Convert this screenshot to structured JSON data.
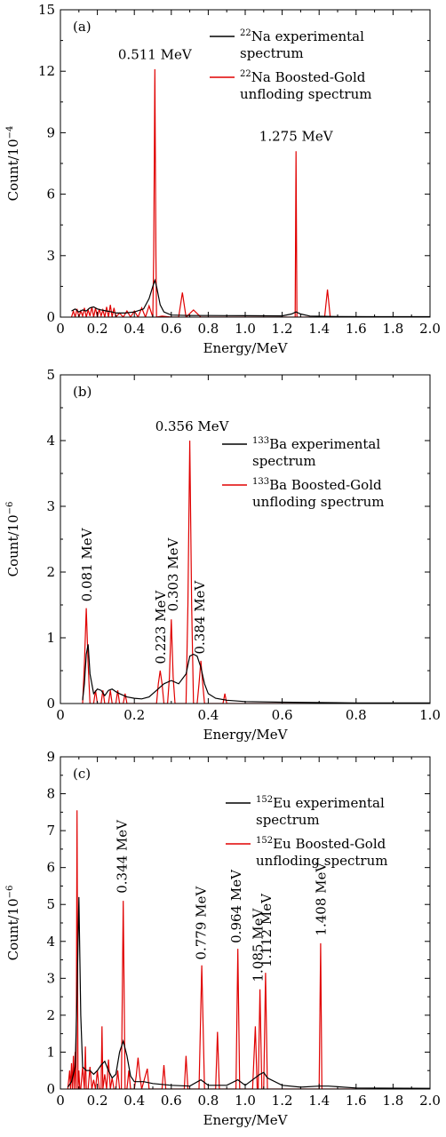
{
  "chart_data": [
    {
      "type": "line",
      "panel_tag": "(a)",
      "xlabel": "Energy/MeV",
      "ylabel": "Count/10",
      "ylabel_exp": "−4",
      "xlim": [
        0,
        2.0
      ],
      "ylim": [
        0,
        15
      ],
      "xticks": [
        "0",
        "0.2",
        "0.4",
        "0.6",
        "0.8",
        "1.0",
        "1.2",
        "1.4",
        "1.6",
        "1.8",
        "2.0"
      ],
      "yticks": [
        "0",
        "3",
        "6",
        "9",
        "12",
        "15"
      ],
      "legend": [
        {
          "sup": "22",
          "line1": "Na experimental",
          "line2": "spectrum",
          "color": "#000000"
        },
        {
          "sup": "22",
          "line1": "Na Boosted-Gold",
          "line2": "unfloding spectrum",
          "color": "#e00000"
        }
      ],
      "annotations": [
        {
          "text": "0.511 MeV",
          "x": 0.511,
          "y": 12.6,
          "rotate": false
        },
        {
          "text": "1.275 MeV",
          "x": 1.275,
          "y": 8.6,
          "rotate": false
        }
      ],
      "series": [
        {
          "color": "#000000",
          "x": [
            0.06,
            0.08,
            0.1,
            0.12,
            0.14,
            0.16,
            0.18,
            0.2,
            0.22,
            0.25,
            0.28,
            0.3,
            0.35,
            0.4,
            0.45,
            0.48,
            0.5,
            0.511,
            0.52,
            0.54,
            0.56,
            0.6,
            0.7,
            0.8,
            1.0,
            1.2,
            1.25,
            1.275,
            1.3,
            1.35,
            1.5,
            1.7,
            2.0
          ],
          "y": [
            0.3,
            0.4,
            0.25,
            0.35,
            0.3,
            0.45,
            0.5,
            0.4,
            0.35,
            0.3,
            0.25,
            0.2,
            0.2,
            0.25,
            0.4,
            0.9,
            1.5,
            1.8,
            1.5,
            0.6,
            0.25,
            0.1,
            0.08,
            0.08,
            0.07,
            0.06,
            0.15,
            0.25,
            0.15,
            0.05,
            0.03,
            0.02,
            0.02
          ]
        },
        {
          "color": "#e00000",
          "x": [
            0.06,
            0.07,
            0.08,
            0.09,
            0.1,
            0.11,
            0.12,
            0.13,
            0.14,
            0.15,
            0.16,
            0.17,
            0.18,
            0.19,
            0.2,
            0.21,
            0.22,
            0.23,
            0.24,
            0.25,
            0.26,
            0.27,
            0.28,
            0.29,
            0.3,
            0.32,
            0.34,
            0.36,
            0.38,
            0.4,
            0.42,
            0.44,
            0.46,
            0.48,
            0.5,
            0.505,
            0.511,
            0.517,
            0.52,
            0.55,
            0.6,
            0.64,
            0.66,
            0.68,
            0.72,
            0.76,
            0.8,
            1.0,
            1.2,
            1.27,
            1.275,
            1.28,
            1.3,
            1.4,
            1.43,
            1.445,
            1.46,
            1.5,
            2.0
          ],
          "y": [
            0,
            0.3,
            0,
            0.4,
            0,
            0.3,
            0.05,
            0.45,
            0,
            0.35,
            0.05,
            0.5,
            0,
            0.45,
            0,
            0.4,
            0.05,
            0.35,
            0,
            0.5,
            0,
            0.6,
            0,
            0.45,
            0,
            0.2,
            0,
            0.3,
            0,
            0.3,
            0,
            0.45,
            0,
            0.55,
            0,
            3,
            12.1,
            3,
            0,
            0.05,
            0,
            0,
            1.2,
            0,
            0.35,
            0,
            0,
            0,
            0,
            0,
            8.1,
            0,
            0,
            0,
            0,
            1.35,
            0,
            0,
            0
          ]
        }
      ]
    },
    {
      "type": "line",
      "panel_tag": "(b)",
      "xlabel": "Energy/MeV",
      "ylabel": "Count/10",
      "ylabel_exp": "−6",
      "xlim": [
        0,
        1.0
      ],
      "ylim": [
        0,
        5
      ],
      "xticks": [
        "0",
        "0.2",
        "0.4",
        "0.6",
        "0.8",
        "1.0"
      ],
      "yticks": [
        "0",
        "1",
        "2",
        "3",
        "4",
        "5"
      ],
      "legend": [
        {
          "sup": "133",
          "line1": "Ba experimental",
          "line2": "spectrum",
          "color": "#000000"
        },
        {
          "sup": "133",
          "line1": "Ba Boosted-Gold",
          "line2": "unfloding spectrum",
          "color": "#e00000"
        }
      ],
      "annotations": [
        {
          "text": "0.356 MeV",
          "x": 0.356,
          "y": 4.15,
          "rotate": false
        },
        {
          "text": "0.081 MeV",
          "x": 0.072,
          "y": 1.55,
          "rotate": true
        },
        {
          "text": "0.223 MeV",
          "x": 0.272,
          "y": 0.6,
          "rotate": true
        },
        {
          "text": "0.303 MeV",
          "x": 0.305,
          "y": 1.4,
          "rotate": true
        },
        {
          "text": "0.384 MeV",
          "x": 0.378,
          "y": 0.75,
          "rotate": true
        }
      ],
      "series": [
        {
          "color": "#000000",
          "x": [
            0.06,
            0.065,
            0.07,
            0.075,
            0.08,
            0.09,
            0.1,
            0.11,
            0.12,
            0.13,
            0.14,
            0.15,
            0.16,
            0.18,
            0.2,
            0.22,
            0.24,
            0.26,
            0.28,
            0.3,
            0.32,
            0.34,
            0.35,
            0.36,
            0.37,
            0.38,
            0.39,
            0.4,
            0.42,
            0.45,
            0.5,
            0.6,
            0.8,
            1.0
          ],
          "y": [
            0.05,
            0.3,
            0.75,
            0.9,
            0.45,
            0.15,
            0.22,
            0.2,
            0.12,
            0.2,
            0.22,
            0.18,
            0.15,
            0.1,
            0.08,
            0.07,
            0.1,
            0.2,
            0.3,
            0.35,
            0.3,
            0.45,
            0.72,
            0.75,
            0.72,
            0.55,
            0.3,
            0.15,
            0.08,
            0.05,
            0.03,
            0.02,
            0.01,
            0.01
          ]
        },
        {
          "color": "#e00000",
          "x": [
            0.06,
            0.065,
            0.07,
            0.075,
            0.08,
            0.085,
            0.09,
            0.095,
            0.1,
            0.11,
            0.115,
            0.12,
            0.13,
            0.135,
            0.14,
            0.15,
            0.155,
            0.16,
            0.17,
            0.175,
            0.18,
            0.19,
            0.2,
            0.22,
            0.24,
            0.26,
            0.265,
            0.27,
            0.275,
            0.28,
            0.29,
            0.295,
            0.3,
            0.305,
            0.31,
            0.33,
            0.34,
            0.345,
            0.35,
            0.355,
            0.36,
            0.37,
            0.375,
            0.38,
            0.385,
            0.39,
            0.42,
            0.44,
            0.445,
            0.45,
            0.46,
            0.5,
            1.0
          ],
          "y": [
            0,
            0.6,
            1.45,
            0.6,
            0,
            0,
            0,
            0.2,
            0,
            0,
            0.2,
            0,
            0,
            0.2,
            0,
            0,
            0.2,
            0,
            0,
            0.15,
            0,
            0,
            0,
            0,
            0,
            0,
            0.3,
            0.5,
            0.3,
            0,
            0,
            0.4,
            1.28,
            0.4,
            0,
            0,
            0,
            1.5,
            4.0,
            1.5,
            0,
            0,
            0.3,
            0.65,
            0.3,
            0,
            0,
            0,
            0.15,
            0,
            0,
            0,
            0
          ]
        }
      ]
    },
    {
      "type": "line",
      "panel_tag": "(c)",
      "xlabel": "Energy/MeV",
      "ylabel": "Count/10",
      "ylabel_exp": "−6",
      "xlim": [
        0,
        2.0
      ],
      "ylim": [
        0,
        9
      ],
      "xticks": [
        "0",
        "0.2",
        "0.4",
        "0.6",
        "0.8",
        "1.0",
        "1.2",
        "1.4",
        "1.6",
        "1.8",
        "2.0"
      ],
      "yticks": [
        "0",
        "1",
        "2",
        "3",
        "4",
        "5",
        "6",
        "7",
        "8",
        "9"
      ],
      "legend": [
        {
          "sup": "152",
          "line1": "Eu experimental",
          "line2": "spectrum",
          "color": "#000000"
        },
        {
          "sup": "152",
          "line1": "Eu Boosted-Gold",
          "line2": "unfloding spectrum",
          "color": "#e00000"
        }
      ],
      "annotations": [
        {
          "text": "0.344 MeV",
          "x": 0.335,
          "y": 5.3,
          "rotate": true
        },
        {
          "text": "0.779 MeV",
          "x": 0.762,
          "y": 3.5,
          "rotate": true
        },
        {
          "text": "0.964 MeV",
          "x": 0.952,
          "y": 3.95,
          "rotate": true
        },
        {
          "text": "1.085 MeV",
          "x": 1.07,
          "y": 2.9,
          "rotate": true
        },
        {
          "text": "1.112 MeV",
          "x": 1.115,
          "y": 3.3,
          "rotate": true
        },
        {
          "text": "1.408 MeV",
          "x": 1.41,
          "y": 4.15,
          "rotate": true
        }
      ],
      "series": [
        {
          "color": "#000000",
          "x": [
            0.04,
            0.06,
            0.08,
            0.09,
            0.1,
            0.11,
            0.12,
            0.14,
            0.16,
            0.18,
            0.2,
            0.22,
            0.24,
            0.26,
            0.28,
            0.3,
            0.32,
            0.34,
            0.36,
            0.38,
            0.4,
            0.45,
            0.5,
            0.6,
            0.7,
            0.76,
            0.8,
            0.9,
            0.96,
            1.0,
            1.08,
            1.1,
            1.12,
            1.2,
            1.3,
            1.4,
            1.45,
            1.6,
            2.0
          ],
          "y": [
            0.05,
            0.2,
            0.6,
            2.5,
            5.2,
            2.0,
            0.6,
            0.5,
            0.5,
            0.4,
            0.5,
            0.65,
            0.75,
            0.5,
            0.3,
            0.4,
            1.0,
            1.3,
            0.9,
            0.35,
            0.2,
            0.2,
            0.15,
            0.1,
            0.08,
            0.25,
            0.1,
            0.1,
            0.25,
            0.1,
            0.4,
            0.45,
            0.3,
            0.1,
            0.05,
            0.08,
            0.08,
            0.03,
            0.02
          ]
        },
        {
          "color": "#e00000",
          "x": [
            0.04,
            0.05,
            0.055,
            0.06,
            0.065,
            0.07,
            0.075,
            0.08,
            0.085,
            0.09,
            0.095,
            0.1,
            0.105,
            0.11,
            0.12,
            0.13,
            0.135,
            0.14,
            0.15,
            0.16,
            0.17,
            0.18,
            0.19,
            0.2,
            0.21,
            0.22,
            0.225,
            0.23,
            0.24,
            0.25,
            0.26,
            0.27,
            0.28,
            0.29,
            0.3,
            0.31,
            0.32,
            0.33,
            0.34,
            0.35,
            0.36,
            0.37,
            0.38,
            0.39,
            0.4,
            0.41,
            0.42,
            0.43,
            0.44,
            0.47,
            0.48,
            0.5,
            0.55,
            0.56,
            0.57,
            0.6,
            0.67,
            0.68,
            0.69,
            0.74,
            0.75,
            0.765,
            0.78,
            0.82,
            0.84,
            0.85,
            0.86,
            0.93,
            0.95,
            0.96,
            0.97,
            1.04,
            1.055,
            1.065,
            1.07,
            1.08,
            1.09,
            1.1,
            1.11,
            1.12,
            1.13,
            1.15,
            1.39,
            1.4,
            1.408,
            1.415,
            1.43,
            2.0
          ],
          "y": [
            0,
            0.5,
            0,
            0.7,
            0,
            0.9,
            0,
            1.0,
            0,
            7.55,
            0,
            0.5,
            0,
            0,
            0.6,
            0,
            1.15,
            0,
            0,
            0.6,
            0,
            0.25,
            0,
            0.5,
            0,
            0,
            1.7,
            0,
            0.4,
            0,
            0.8,
            0,
            0.3,
            0,
            0,
            0.5,
            0,
            0,
            5.1,
            0,
            0,
            0.5,
            0,
            0,
            0,
            0.35,
            0.85,
            0.35,
            0,
            0.55,
            0,
            0,
            0,
            0.65,
            0,
            0,
            0,
            0.9,
            0,
            0,
            0,
            3.35,
            0,
            0,
            0,
            1.55,
            0,
            0,
            0,
            3.8,
            0,
            0,
            1.7,
            0,
            0,
            2.7,
            0,
            0,
            3.15,
            0,
            0,
            0,
            0,
            0,
            3.95,
            0,
            0,
            0
          ]
        }
      ]
    }
  ]
}
